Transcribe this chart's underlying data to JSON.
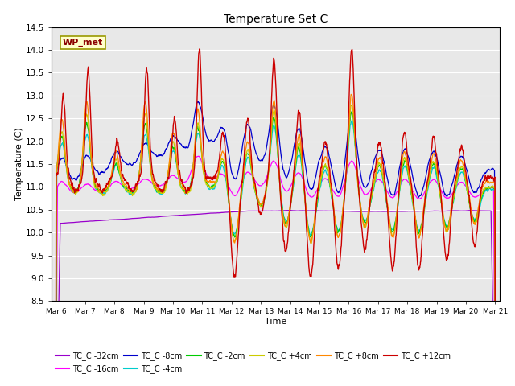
{
  "title": "Temperature Set C",
  "xlabel": "Time",
  "ylabel": "Temperature (C)",
  "ylim": [
    8.5,
    14.5
  ],
  "xlim_days": [
    5.85,
    21.15
  ],
  "series_colors": {
    "TC_C -32cm": "#9900cc",
    "TC_C -16cm": "#ff00ff",
    "TC_C -8cm": "#0000cc",
    "TC_C -4cm": "#00cccc",
    "TC_C -2cm": "#00cc00",
    "TC_C +4cm": "#cccc00",
    "TC_C +8cm": "#ff8800",
    "TC_C +12cm": "#cc0000"
  },
  "wp_met_label": "WP_met",
  "bg_color": "#e8e8e8",
  "yticks": [
    8.5,
    9.0,
    9.5,
    10.0,
    10.5,
    11.0,
    11.5,
    12.0,
    12.5,
    13.0,
    13.5,
    14.0,
    14.5
  ],
  "xtick_labels": [
    "Mar 6",
    "Mar 7",
    "Mar 8",
    "Mar 9",
    "Mar 10",
    "Mar 11",
    "Mar 12",
    "Mar 13",
    "Mar 14",
    "Mar 15",
    "Mar 16",
    "Mar 17",
    "Mar 18",
    "Mar 19",
    "Mar 20",
    "Mar 21"
  ],
  "xtick_positions": [
    6,
    7,
    8,
    9,
    10,
    11,
    12,
    13,
    14,
    15,
    16,
    17,
    18,
    19,
    20,
    21
  ]
}
